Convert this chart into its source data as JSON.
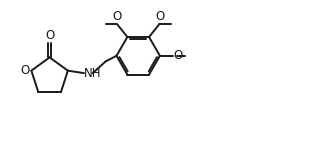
{
  "bg_color": "#ffffff",
  "line_color": "#1a1a1a",
  "line_width": 1.4,
  "font_size": 8.5,
  "fig_width": 3.13,
  "fig_height": 1.47,
  "xlim": [
    0,
    10
  ],
  "ylim": [
    0,
    4.7
  ]
}
